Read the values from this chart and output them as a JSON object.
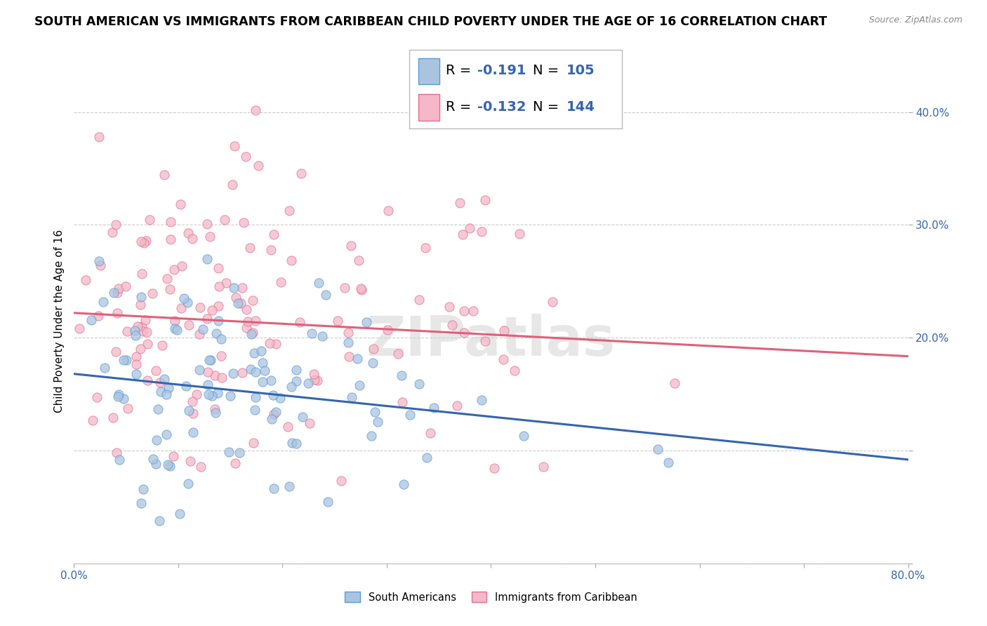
{
  "title": "SOUTH AMERICAN VS IMMIGRANTS FROM CARIBBEAN CHILD POVERTY UNDER THE AGE OF 16 CORRELATION CHART",
  "source": "Source: ZipAtlas.com",
  "ylabel": "Child Poverty Under the Age of 16",
  "series": [
    {
      "name": "South Americans",
      "color": "#aac4e0",
      "edge_color": "#5b9bd5",
      "R": -0.191,
      "N": 105,
      "trend_color": "#3565b0",
      "slope": -0.095,
      "intercept": 0.168
    },
    {
      "name": "Immigrants from Caribbean",
      "color": "#f4b8c8",
      "edge_color": "#e07090",
      "R": -0.132,
      "N": 144,
      "trend_color": "#e0607a",
      "slope": -0.048,
      "intercept": 0.222
    }
  ],
  "xlim": [
    0.0,
    0.8
  ],
  "ylim": [
    0.0,
    0.43
  ],
  "x_ticks": [
    0.0,
    0.1,
    0.2,
    0.3,
    0.4,
    0.5,
    0.6,
    0.7,
    0.8
  ],
  "y_ticks": [
    0.0,
    0.1,
    0.2,
    0.3,
    0.4
  ],
  "watermark": "ZIPatlas",
  "background_color": "#ffffff",
  "grid_color": "#cccccc",
  "title_fontsize": 12.5,
  "axis_label_fontsize": 11,
  "tick_fontsize": 11,
  "legend_R_color": "#3565b0",
  "legend_border_color": "#aaaaaa"
}
